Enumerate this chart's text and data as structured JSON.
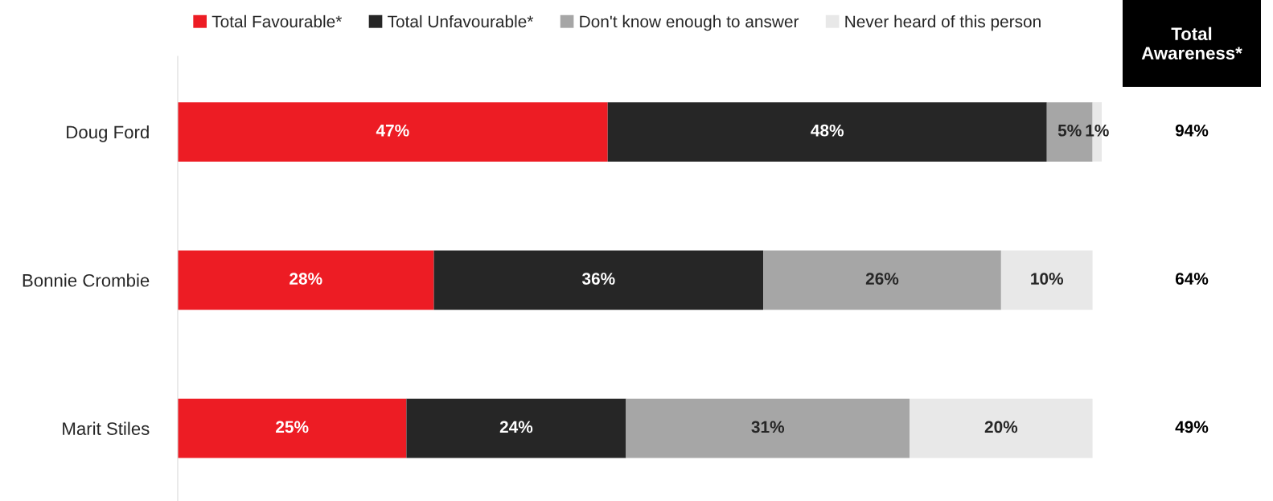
{
  "chart_data": [
    {
      "type": "bar",
      "orientation": "horizontal",
      "stacked": true,
      "legend": "top",
      "grid": false,
      "categories": [
        "Doug Ford",
        "Bonnie Crombie",
        "Marit Stiles"
      ],
      "series": [
        {
          "name": "Total Favourable*",
          "color": "#ed1c24",
          "values": [
            47,
            28,
            25
          ],
          "value_labels": [
            "47%",
            "28%",
            "25%"
          ]
        },
        {
          "name": "Total Unfavourable*",
          "color": "#262626",
          "values": [
            48,
            36,
            24
          ],
          "value_labels": [
            "48%",
            "36%",
            "24%"
          ]
        },
        {
          "name": "Don't know enough to answer",
          "color": "#a6a6a6",
          "values": [
            5,
            26,
            31
          ],
          "value_labels": [
            "5%",
            "26%",
            "31%"
          ]
        },
        {
          "name": "Never heard of this person",
          "color": "#e8e8e8",
          "values": [
            1,
            10,
            20
          ],
          "value_labels": [
            "1%",
            "10%",
            "20%"
          ]
        }
      ]
    },
    {
      "type": "other",
      "title": "Total Awareness*",
      "annotations": [
        "94%",
        "64%",
        "49%"
      ]
    }
  ]
}
